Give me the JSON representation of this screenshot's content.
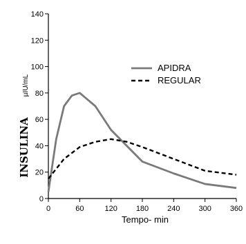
{
  "chart_data": {
    "type": "line",
    "title": "",
    "xlabel": "Tempo- min",
    "ylabel": "INSULINA",
    "ylabel_unit": "µIU/mL",
    "xlim": [
      0,
      360
    ],
    "ylim": [
      0,
      140
    ],
    "xticks": [
      0,
      60,
      120,
      180,
      240,
      300,
      360
    ],
    "yticks": [
      0,
      20,
      40,
      60,
      80,
      100,
      120,
      140
    ],
    "grid": false,
    "legend_position": "top-right",
    "series": [
      {
        "name": "APIDRA",
        "style": "solid",
        "color": "#7a7a7a",
        "x": [
          0,
          15,
          30,
          45,
          60,
          90,
          120,
          180,
          240,
          300,
          360
        ],
        "y": [
          5,
          45,
          70,
          78,
          80,
          70,
          52,
          28,
          19,
          11,
          8
        ]
      },
      {
        "name": "REGULAR",
        "style": "dashed",
        "color": "#000000",
        "x": [
          0,
          30,
          60,
          90,
          120,
          150,
          180,
          240,
          300,
          360
        ],
        "y": [
          15,
          30,
          39,
          43,
          45,
          43,
          39,
          30,
          21,
          18
        ]
      }
    ]
  }
}
